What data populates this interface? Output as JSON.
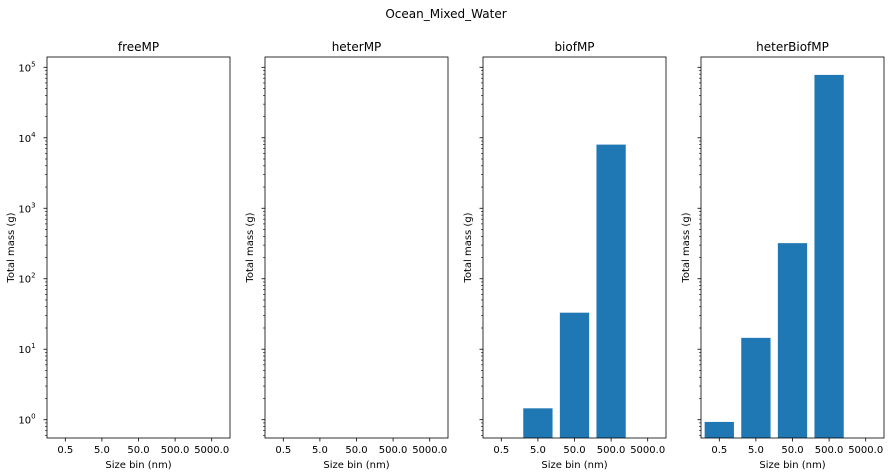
{
  "figure": {
    "suptitle": "Ocean_Mixed_Water"
  },
  "chart_data": [
    {
      "type": "bar",
      "title": "freeMP",
      "xlabel": "Size bin (nm)",
      "ylabel": "Total mass (g)",
      "yscale": "log",
      "ylim": [
        0.55,
        140000
      ],
      "categories": [
        "0.5",
        "5.0",
        "50.0",
        "500.0",
        "5000.0"
      ],
      "values": [
        null,
        null,
        null,
        null,
        null
      ],
      "color": "#1f77b4"
    },
    {
      "type": "bar",
      "title": "heterMP",
      "xlabel": "Size bin (nm)",
      "ylabel": "Total mass (g)",
      "yscale": "log",
      "ylim": [
        0.55,
        140000
      ],
      "categories": [
        "0.5",
        "5.0",
        "50.0",
        "500.0",
        "5000.0"
      ],
      "values": [
        null,
        null,
        null,
        null,
        null
      ],
      "color": "#1f77b4"
    },
    {
      "type": "bar",
      "title": "biofMP",
      "xlabel": "Size bin (nm)",
      "ylabel": "Total mass (g)",
      "yscale": "log",
      "ylim": [
        0.55,
        140000
      ],
      "categories": [
        "0.5",
        "5.0",
        "50.0",
        "500.0",
        "5000.0"
      ],
      "values": [
        null,
        1.45,
        33,
        8000,
        null
      ],
      "color": "#1f77b4"
    },
    {
      "type": "bar",
      "title": "heterBiofMP",
      "xlabel": "Size bin (nm)",
      "ylabel": "Total mass (g)",
      "yscale": "log",
      "ylim": [
        0.55,
        140000
      ],
      "categories": [
        "0.5",
        "5.0",
        "50.0",
        "500.0",
        "5000.0"
      ],
      "values": [
        0.93,
        14.5,
        320,
        78000,
        null
      ],
      "color": "#1f77b4"
    }
  ],
  "y_ticks": [
    {
      "base": "10",
      "exp": "0"
    },
    {
      "base": "10",
      "exp": "1"
    },
    {
      "base": "10",
      "exp": "2"
    },
    {
      "base": "10",
      "exp": "3"
    },
    {
      "base": "10",
      "exp": "4"
    },
    {
      "base": "10",
      "exp": "5"
    }
  ]
}
